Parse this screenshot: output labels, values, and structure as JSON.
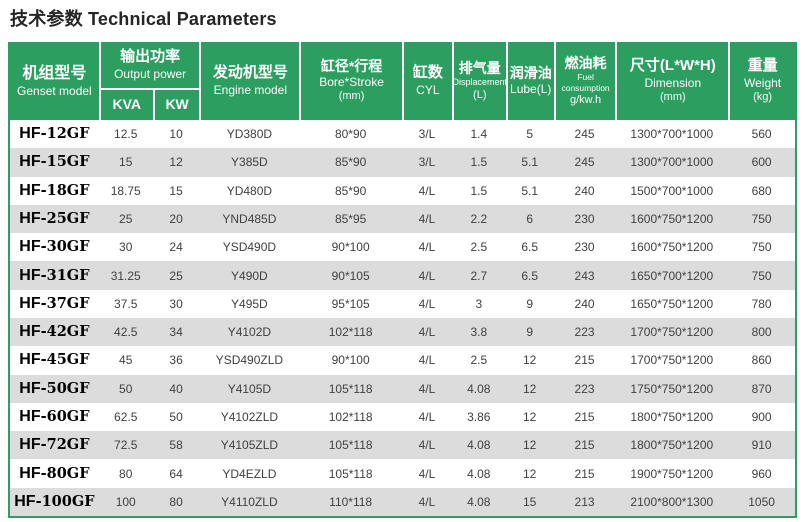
{
  "page": {
    "title": "技术参数 Technical Parameters"
  },
  "colors": {
    "header_green": "#2b9e60",
    "row_alt_gray": "#dcdcdc",
    "text_dark": "#404040"
  },
  "table": {
    "headers": {
      "genset_model": {
        "zh": "机组型号",
        "en": "Genset model"
      },
      "output_power": {
        "zh": "输出功率",
        "en": "Output power",
        "sub_kva": "KVA",
        "sub_kw": "KW"
      },
      "engine_model": {
        "zh": "发动机型号",
        "en": "Engine model"
      },
      "bore_stroke": {
        "zh": "缸径*行程",
        "en": "Bore*Stroke",
        "unit": "(mm)"
      },
      "cyl": {
        "zh": "缸数",
        "en": "CYL"
      },
      "displacement": {
        "zh": "排气量",
        "en": "Displacement",
        "unit": "(L)"
      },
      "lube": {
        "zh": "润滑油",
        "en": "Lube(L)"
      },
      "fuel": {
        "zh": "燃油耗",
        "en": "Fuel consumption",
        "unit": "g/kw.h"
      },
      "dimension": {
        "zh": "尺寸(L*W*H)",
        "en": "Dimension",
        "unit": "(mm)"
      },
      "weight": {
        "zh": "重量",
        "en": "Weight",
        "unit": "(kg)"
      }
    },
    "rows": [
      [
        "HF-12GF",
        "12.5",
        "10",
        "YD380D",
        "80*90",
        "3/L",
        "1.4",
        "5",
        "245",
        "1300*700*1000",
        "560"
      ],
      [
        "HF-15GF",
        "15",
        "12",
        "Y385D",
        "85*90",
        "3/L",
        "1.5",
        "5.1",
        "245",
        "1300*700*1000",
        "600"
      ],
      [
        "HF-18GF",
        "18.75",
        "15",
        "YD480D",
        "85*90",
        "4/L",
        "1.5",
        "5.1",
        "240",
        "1500*700*1000",
        "680"
      ],
      [
        "HF-25GF",
        "25",
        "20",
        "YND485D",
        "85*95",
        "4/L",
        "2.2",
        "6",
        "230",
        "1600*750*1200",
        "750"
      ],
      [
        "HF-30GF",
        "30",
        "24",
        "YSD490D",
        "90*100",
        "4/L",
        "2.5",
        "6.5",
        "230",
        "1600*750*1200",
        "750"
      ],
      [
        "HF-31GF",
        "31.25",
        "25",
        "Y490D",
        "90*105",
        "4/L",
        "2.7",
        "6.5",
        "243",
        "1650*700*1200",
        "750"
      ],
      [
        "HF-37GF",
        "37.5",
        "30",
        "Y495D",
        "95*105",
        "4/L",
        "3",
        "9",
        "240",
        "1650*750*1200",
        "780"
      ],
      [
        "HF-42GF",
        "42.5",
        "34",
        "Y4102D",
        "102*118",
        "4/L",
        "3.8",
        "9",
        "223",
        "1700*750*1200",
        "800"
      ],
      [
        "HF-45GF",
        "45",
        "36",
        "YSD490ZLD",
        "90*100",
        "4/L",
        "2.5",
        "12",
        "215",
        "1700*750*1200",
        "860"
      ],
      [
        "HF-50GF",
        "50",
        "40",
        "Y4105D",
        "105*118",
        "4/L",
        "4.08",
        "12",
        "223",
        "1750*750*1200",
        "870"
      ],
      [
        "HF-60GF",
        "62.5",
        "50",
        "Y4102ZLD",
        "102*118",
        "4/L",
        "3.86",
        "12",
        "215",
        "1800*750*1200",
        "900"
      ],
      [
        "HF-72GF",
        "72.5",
        "58",
        "Y4105ZLD",
        "105*118",
        "4/L",
        "4.08",
        "12",
        "215",
        "1800*750*1200",
        "910"
      ],
      [
        "HF-80GF",
        "80",
        "64",
        "YD4EZLD",
        "105*118",
        "4/L",
        "4.08",
        "12",
        "215",
        "1900*750*1200",
        "960"
      ],
      [
        "HF-100GF",
        "100",
        "80",
        "Y4110ZLD",
        "110*118",
        "4/L",
        "4.08",
        "15",
        "213",
        "2100*800*1300",
        "1050"
      ]
    ]
  }
}
